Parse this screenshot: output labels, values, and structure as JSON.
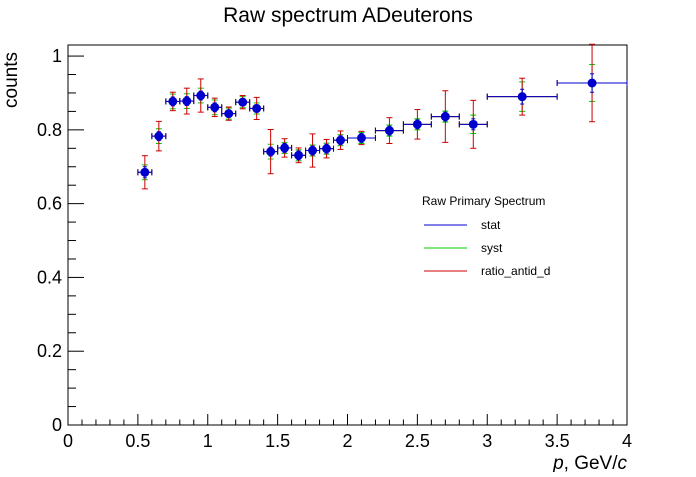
{
  "chart_data": {
    "type": "scatter",
    "title": "Raw spectrum ADeuterons",
    "ylabel": "counts",
    "xlabel_italic": "p",
    "xlabel_rest": ", GeV/",
    "xlabel_unit": "c",
    "xlim": [
      0,
      4
    ],
    "ylim": [
      0,
      1.03
    ],
    "x_ticks": [
      0,
      0.5,
      1,
      1.5,
      2,
      2.5,
      3,
      3.5,
      4
    ],
    "x_tick_labels": [
      "0",
      "0.5",
      "1",
      "1.5",
      "2",
      "2.5",
      "3",
      "3.5",
      "4"
    ],
    "y_ticks": [
      0,
      0.2,
      0.4,
      0.6,
      0.8,
      1
    ],
    "y_tick_labels": [
      "0",
      "0.2",
      "0.4",
      "0.6",
      "0.8",
      "1"
    ],
    "grid": false,
    "legend": {
      "title": "Raw Primary Spectrum",
      "placement": "center-right",
      "entries": [
        {
          "label": "stat",
          "color": "#0000cc"
        },
        {
          "label": "syst",
          "color": "#00cc00"
        },
        {
          "label": "ratio_antid_d",
          "color": "#cc0000"
        }
      ]
    },
    "marker_color": "#0000cc",
    "points": [
      {
        "x": 0.55,
        "xerr": 0.05,
        "y": 0.685,
        "stat": 0.015,
        "syst": 0.02,
        "ratio": 0.045
      },
      {
        "x": 0.65,
        "xerr": 0.05,
        "y": 0.783,
        "stat": 0.012,
        "syst": 0.02,
        "ratio": 0.04
      },
      {
        "x": 0.75,
        "xerr": 0.05,
        "y": 0.877,
        "stat": 0.012,
        "syst": 0.02,
        "ratio": 0.025
      },
      {
        "x": 0.85,
        "xerr": 0.05,
        "y": 0.878,
        "stat": 0.012,
        "syst": 0.02,
        "ratio": 0.035
      },
      {
        "x": 0.95,
        "xerr": 0.05,
        "y": 0.893,
        "stat": 0.012,
        "syst": 0.02,
        "ratio": 0.045
      },
      {
        "x": 1.05,
        "xerr": 0.05,
        "y": 0.861,
        "stat": 0.012,
        "syst": 0.02,
        "ratio": 0.025
      },
      {
        "x": 1.15,
        "xerr": 0.05,
        "y": 0.844,
        "stat": 0.01,
        "syst": 0.015,
        "ratio": 0.018
      },
      {
        "x": 1.25,
        "xerr": 0.05,
        "y": 0.875,
        "stat": 0.01,
        "syst": 0.015,
        "ratio": 0.018
      },
      {
        "x": 1.35,
        "xerr": 0.05,
        "y": 0.858,
        "stat": 0.01,
        "syst": 0.015,
        "ratio": 0.03
      },
      {
        "x": 1.45,
        "xerr": 0.05,
        "y": 0.741,
        "stat": 0.012,
        "syst": 0.02,
        "ratio": 0.06
      },
      {
        "x": 1.55,
        "xerr": 0.05,
        "y": 0.751,
        "stat": 0.012,
        "syst": 0.015,
        "ratio": 0.025
      },
      {
        "x": 1.65,
        "xerr": 0.05,
        "y": 0.731,
        "stat": 0.012,
        "syst": 0.015,
        "ratio": 0.02
      },
      {
        "x": 1.75,
        "xerr": 0.05,
        "y": 0.744,
        "stat": 0.012,
        "syst": 0.015,
        "ratio": 0.045
      },
      {
        "x": 1.85,
        "xerr": 0.05,
        "y": 0.749,
        "stat": 0.012,
        "syst": 0.015,
        "ratio": 0.025
      },
      {
        "x": 1.95,
        "xerr": 0.05,
        "y": 0.772,
        "stat": 0.012,
        "syst": 0.015,
        "ratio": 0.025
      },
      {
        "x": 2.1,
        "xerr": 0.1,
        "y": 0.778,
        "stat": 0.012,
        "syst": 0.015,
        "ratio": 0.018
      },
      {
        "x": 2.3,
        "xerr": 0.1,
        "y": 0.798,
        "stat": 0.012,
        "syst": 0.015,
        "ratio": 0.035
      },
      {
        "x": 2.5,
        "xerr": 0.1,
        "y": 0.815,
        "stat": 0.012,
        "syst": 0.015,
        "ratio": 0.04
      },
      {
        "x": 2.7,
        "xerr": 0.1,
        "y": 0.836,
        "stat": 0.012,
        "syst": 0.015,
        "ratio": 0.07
      },
      {
        "x": 2.9,
        "xerr": 0.1,
        "y": 0.815,
        "stat": 0.015,
        "syst": 0.025,
        "ratio": 0.065
      },
      {
        "x": 3.25,
        "xerr": 0.25,
        "y": 0.89,
        "stat": 0.02,
        "syst": 0.04,
        "ratio": 0.05
      },
      {
        "x": 3.75,
        "xerr": 0.25,
        "y": 0.927,
        "stat": 0.025,
        "syst": 0.05,
        "ratio": 0.105
      }
    ]
  }
}
